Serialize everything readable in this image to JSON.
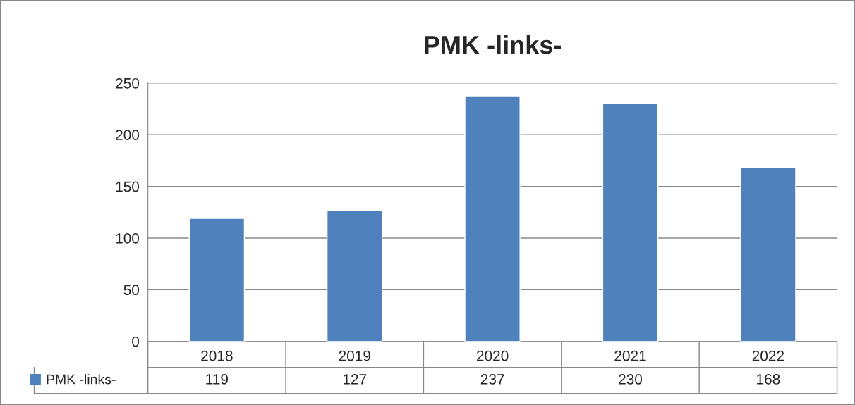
{
  "chart_data": {
    "type": "bar",
    "title": "PMK -links-",
    "categories": [
      "2018",
      "2019",
      "2020",
      "2021",
      "2022"
    ],
    "series": [
      {
        "name": "PMK -links-",
        "color": "#4f81bd",
        "values": [
          119,
          127,
          237,
          230,
          168
        ]
      }
    ],
    "ylim": [
      0,
      250
    ],
    "yticks": [
      0,
      50,
      100,
      150,
      200,
      250
    ],
    "grid": "y",
    "legend": "bottom",
    "data_labels": true
  }
}
